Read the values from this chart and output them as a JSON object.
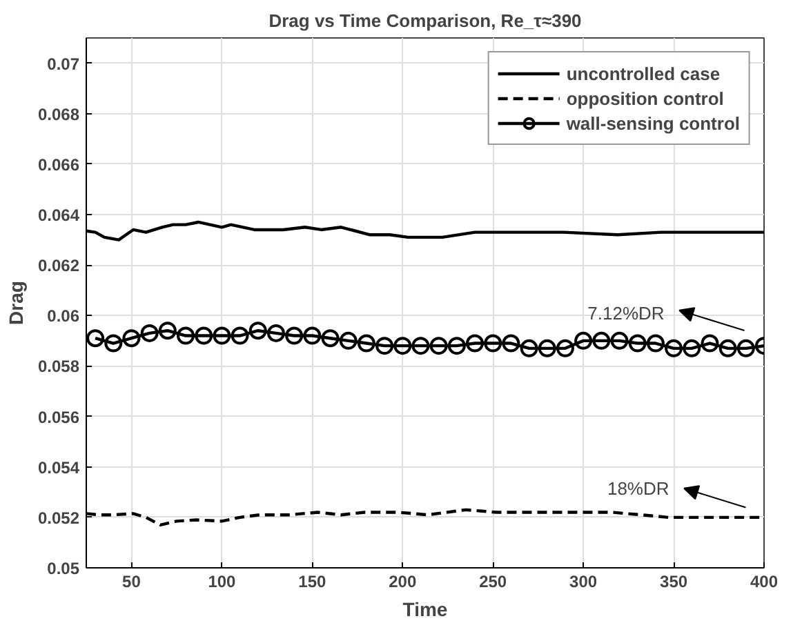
{
  "chart_data": {
    "type": "line",
    "title": "Drag vs Time Comparison, Re_τ≈390",
    "xlabel": "Time",
    "ylabel": "Drag",
    "xlim": [
      25,
      400
    ],
    "ylim": [
      0.05,
      0.071
    ],
    "xticks": [
      50,
      100,
      150,
      200,
      250,
      300,
      350,
      400
    ],
    "yticks": [
      0.05,
      0.052,
      0.054,
      0.056,
      0.058,
      0.06,
      0.062,
      0.064,
      0.066,
      0.068,
      0.07
    ],
    "grid": true,
    "legend": "top right",
    "series": [
      {
        "name": "uncontrolled case",
        "color": "#000000",
        "line_style": "solid",
        "marker": "none",
        "x": [
          25,
          30,
          35,
          43,
          47,
          51,
          58,
          67,
          73,
          80,
          87,
          100,
          105,
          118,
          134,
          146,
          155,
          166,
          182,
          193,
          203,
          222,
          240,
          265,
          289,
          319,
          343,
          375,
          386,
          400
        ],
        "values": [
          0.06335,
          0.0633,
          0.0631,
          0.063,
          0.0632,
          0.0634,
          0.0633,
          0.0635,
          0.0636,
          0.0636,
          0.0637,
          0.0635,
          0.0636,
          0.0634,
          0.0634,
          0.0635,
          0.0634,
          0.0635,
          0.0632,
          0.0632,
          0.0631,
          0.0631,
          0.0633,
          0.0633,
          0.0633,
          0.0632,
          0.0633,
          0.0633,
          0.0633,
          0.0633
        ]
      },
      {
        "name": "opposition control",
        "color": "#000000",
        "line_style": "dashed",
        "marker": "none",
        "x": [
          25,
          32,
          40,
          51,
          58,
          66,
          75,
          86,
          100,
          110,
          121,
          137,
          153,
          166,
          179,
          198,
          214,
          235,
          252,
          268,
          289,
          316,
          332,
          347,
          368,
          400
        ],
        "values": [
          0.05215,
          0.0521,
          0.0521,
          0.05215,
          0.052,
          0.0517,
          0.05185,
          0.0519,
          0.05185,
          0.052,
          0.0521,
          0.0521,
          0.0522,
          0.0521,
          0.0522,
          0.0522,
          0.0521,
          0.0523,
          0.0522,
          0.0522,
          0.0522,
          0.0522,
          0.0521,
          0.052,
          0.052,
          0.052
        ]
      },
      {
        "name": "wall-sensing control",
        "color": "#000000",
        "line_style": "solid",
        "marker": "circle",
        "x": [
          30,
          40,
          50,
          60,
          70,
          80,
          90,
          100,
          110,
          120,
          130,
          140,
          150,
          160,
          170,
          180,
          190,
          200,
          210,
          220,
          230,
          240,
          250,
          260,
          270,
          280,
          290,
          300,
          310,
          320,
          330,
          340,
          350,
          360,
          370,
          380,
          390,
          400
        ],
        "values": [
          0.0591,
          0.0589,
          0.0591,
          0.0593,
          0.0594,
          0.0592,
          0.0592,
          0.0592,
          0.0592,
          0.0594,
          0.0593,
          0.0592,
          0.0592,
          0.0591,
          0.059,
          0.0589,
          0.0588,
          0.0588,
          0.0588,
          0.0588,
          0.0588,
          0.0589,
          0.0589,
          0.0589,
          0.0587,
          0.0587,
          0.0587,
          0.059,
          0.059,
          0.059,
          0.0589,
          0.0589,
          0.0587,
          0.0587,
          0.0589,
          0.0587,
          0.0587,
          0.0588
        ]
      }
    ],
    "annotations": [
      "7.12%DR",
      "18%DR"
    ]
  }
}
